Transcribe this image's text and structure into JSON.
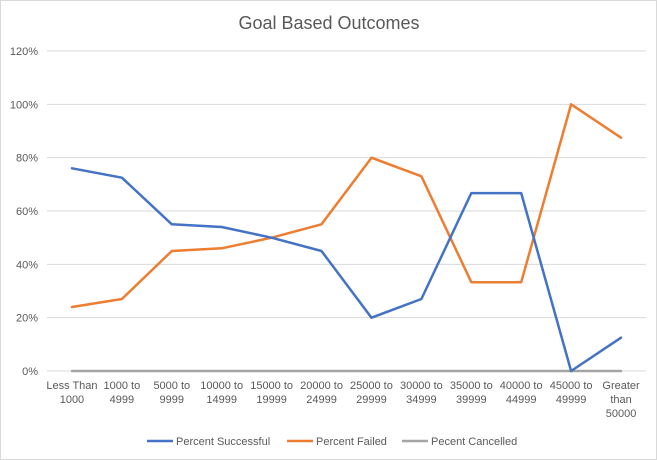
{
  "chart_data": {
    "type": "line",
    "title": "Goal Based Outcomes",
    "categories": [
      [
        "Less Than",
        "1000"
      ],
      [
        "1000 to",
        "4999"
      ],
      [
        "5000 to",
        "9999"
      ],
      [
        "10000 to",
        "14999"
      ],
      [
        "15000 to",
        "19999"
      ],
      [
        "20000 to",
        "24999"
      ],
      [
        "25000 to",
        "29999"
      ],
      [
        "30000 to",
        "34999"
      ],
      [
        "35000 to",
        "39999"
      ],
      [
        "40000 to",
        "44999"
      ],
      [
        "45000 to",
        "49999"
      ],
      [
        "Greater",
        "than",
        "50000"
      ]
    ],
    "ylim": [
      0,
      120
    ],
    "yticks": [
      0,
      20,
      40,
      60,
      80,
      100,
      120
    ],
    "ytick_labels": [
      "0%",
      "20%",
      "40%",
      "60%",
      "80%",
      "100%",
      "120%"
    ],
    "grid": true,
    "legend_position": "bottom",
    "series": [
      {
        "name": "Percent Successful",
        "color": "#4472c4",
        "values": [
          76,
          72.5,
          55,
          54,
          50,
          45,
          20,
          27,
          66.7,
          66.7,
          0,
          12.5
        ]
      },
      {
        "name": "Percent Failed",
        "color": "#ed7d31",
        "values": [
          24,
          27,
          45,
          46,
          50,
          55,
          80,
          73,
          33.3,
          33.3,
          100,
          87.5
        ]
      },
      {
        "name": "Pecent Cancelled",
        "color": "#a5a5a5",
        "values": [
          0,
          0,
          0,
          0,
          0,
          0,
          0,
          0,
          0,
          0,
          0,
          0
        ]
      }
    ]
  }
}
